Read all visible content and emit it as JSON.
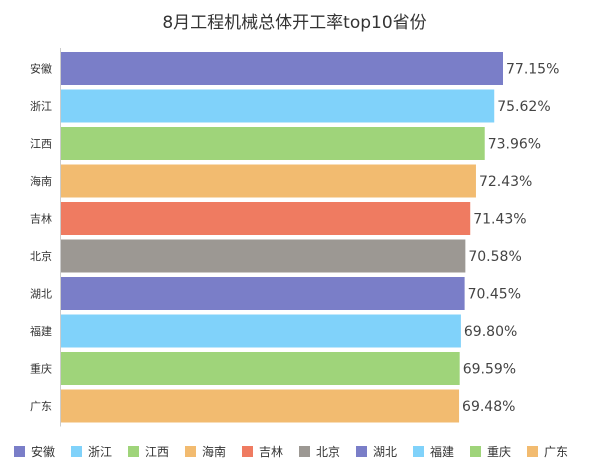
{
  "chart_data": {
    "type": "bar",
    "orientation": "horizontal",
    "title": "8月工程机械总体开工率top10省份",
    "categories": [
      "安徽",
      "浙江",
      "江西",
      "海南",
      "吉林",
      "北京",
      "湖北",
      "福建",
      "重庆",
      "广东"
    ],
    "values": [
      77.15,
      75.62,
      73.96,
      72.43,
      71.43,
      70.58,
      70.45,
      69.8,
      69.59,
      69.48
    ],
    "value_labels": [
      "77.15%",
      "75.62%",
      "73.96%",
      "72.43%",
      "71.43%",
      "70.58%",
      "70.45%",
      "69.80%",
      "69.59%",
      "69.48%"
    ],
    "colors": [
      "#7a7ec8",
      "#80d2fa",
      "#9fd47a",
      "#f2bb70",
      "#ef7b61",
      "#9c9893",
      "#7a7ec8",
      "#80d2fa",
      "#9fd47a",
      "#f2bb70"
    ],
    "xlim": [
      0,
      77.15
    ],
    "grid": false,
    "legend": {
      "position": "bottom",
      "entries": [
        "安徽",
        "浙江",
        "江西",
        "海南",
        "吉林",
        "北京",
        "湖北",
        "福建",
        "重庆",
        "广东"
      ]
    }
  }
}
